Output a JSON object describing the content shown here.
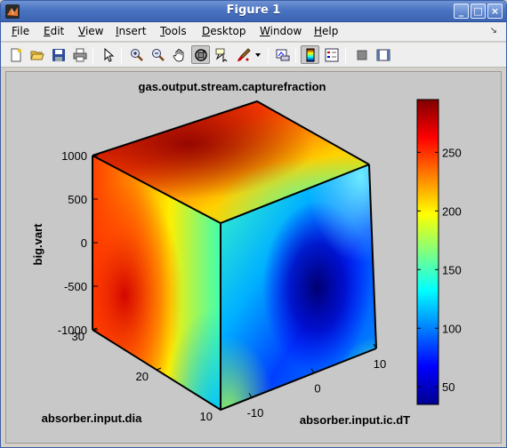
{
  "window": {
    "title": "Figure 1"
  },
  "menu": [
    {
      "label": "File",
      "key": "F",
      "rest": "ile"
    },
    {
      "label": "Edit",
      "key": "E",
      "rest": "dit"
    },
    {
      "label": "View",
      "key": "V",
      "rest": "iew"
    },
    {
      "label": "Insert",
      "key": "I",
      "rest": "nsert"
    },
    {
      "label": "Tools",
      "key": "T",
      "rest": "ools"
    },
    {
      "label": "Desktop",
      "key": "D",
      "rest": "esktop"
    },
    {
      "label": "Window",
      "key": "W",
      "rest": "indow"
    },
    {
      "label": "Help",
      "key": "H",
      "rest": "elp"
    }
  ],
  "toolbar": {
    "buttons": [
      "new-figure-icon",
      "open-file-icon",
      "save-icon",
      "print-icon",
      "pointer-icon",
      "zoom-in-icon",
      "zoom-out-icon",
      "pan-hand-icon",
      "rotate-3d-icon",
      "data-cursor-icon",
      "brush-icon",
      "link-plot-icon",
      "colorbar-icon",
      "legend-icon",
      "hide-plot-tools-icon",
      "show-plot-tools-icon"
    ]
  },
  "chart_data": {
    "type": "heatmap",
    "title": "gas.output.stream.capturefraction",
    "xlabel": "absorber.input.ic.dT",
    "ylabel": "absorber.input.dia",
    "zlabel": "big.vart",
    "x_ticks": [
      "-10",
      "0",
      "10"
    ],
    "y_ticks": [
      "10",
      "20",
      "30"
    ],
    "z_ticks": [
      "-1000",
      "-500",
      "0",
      "500",
      "1000"
    ],
    "xlim": [
      -15,
      10
    ],
    "ylim": [
      10,
      30
    ],
    "zlim": [
      -1000,
      1000
    ],
    "colormap": "jet",
    "colorbar": {
      "ticks": [
        "50",
        "100",
        "150",
        "200",
        "250"
      ],
      "tick_values": [
        50,
        100,
        150,
        200,
        250
      ],
      "range": [
        35,
        295
      ]
    }
  }
}
